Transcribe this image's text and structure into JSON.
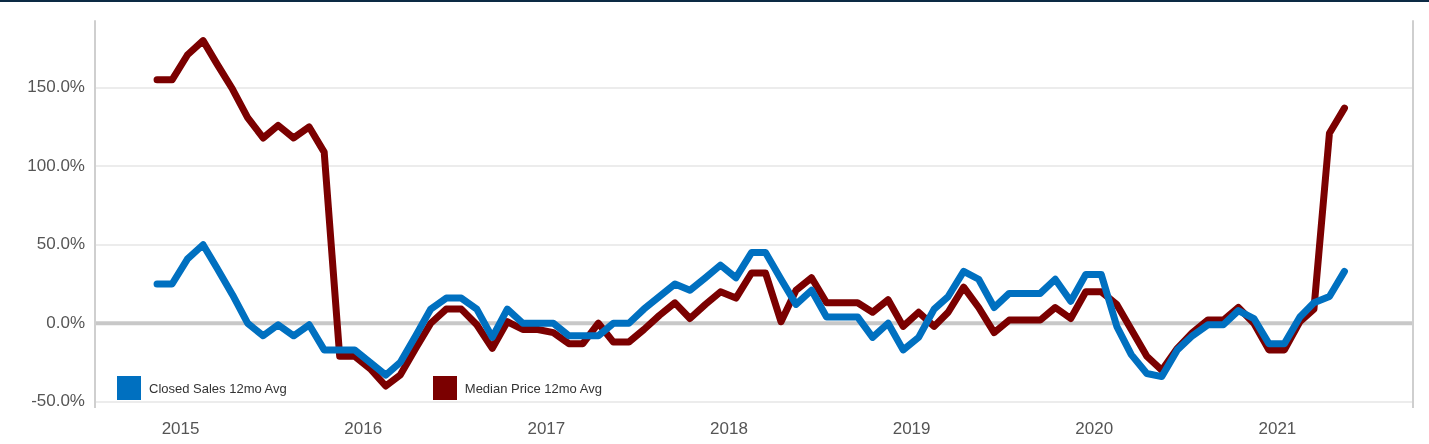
{
  "chart_data": {
    "type": "line",
    "x": [
      "2014-11-15",
      "2014-12-15",
      "2015-01-15",
      "2015-02-15",
      "2015-03-15",
      "2015-04-15",
      "2015-05-15",
      "2015-06-15",
      "2015-07-15",
      "2015-08-15",
      "2015-09-15",
      "2015-10-15",
      "2015-11-15",
      "2015-12-15",
      "2016-01-15",
      "2016-02-15",
      "2016-03-15",
      "2016-04-15",
      "2016-05-15",
      "2016-06-15",
      "2016-07-15",
      "2016-08-15",
      "2016-09-15",
      "2016-10-15",
      "2016-11-15",
      "2016-12-15",
      "2017-01-15",
      "2017-02-15",
      "2017-03-15",
      "2017-04-15",
      "2017-05-15",
      "2017-06-15",
      "2017-07-15",
      "2017-08-15",
      "2017-09-15",
      "2017-10-15",
      "2017-11-15",
      "2017-12-15",
      "2018-01-15",
      "2018-02-15",
      "2018-03-15",
      "2018-04-15",
      "2018-05-15",
      "2018-06-15",
      "2018-07-15",
      "2018-08-15",
      "2018-09-15",
      "2018-10-15",
      "2018-11-15",
      "2018-12-15",
      "2019-01-15",
      "2019-02-15",
      "2019-03-15",
      "2019-04-15",
      "2019-05-15",
      "2019-06-15",
      "2019-07-15",
      "2019-08-15",
      "2019-09-15",
      "2019-10-15",
      "2019-11-15",
      "2019-12-15",
      "2020-01-15",
      "2020-02-15",
      "2020-03-15",
      "2020-04-15",
      "2020-05-15",
      "2020-06-15",
      "2020-07-15",
      "2020-08-15",
      "2020-09-15",
      "2020-10-15",
      "2020-11-15",
      "2020-12-15",
      "2021-01-15",
      "2021-02-15",
      "2021-03-15",
      "2021-04-15",
      "2021-05-15"
    ],
    "series": [
      {
        "name": "Closed Sales 12mo Avg",
        "color": "#0070c0",
        "values": [
          25,
          25,
          41,
          50,
          35,
          18,
          0,
          -8,
          -1,
          -8,
          -1,
          -17,
          -17,
          -17,
          -25,
          -33,
          -25,
          -8,
          9,
          16,
          16,
          9,
          -9,
          9,
          0,
          0,
          0,
          -8,
          -8,
          -8,
          0,
          0,
          9,
          17,
          25,
          21,
          29,
          37,
          29,
          45,
          45,
          28,
          12,
          21,
          4,
          4,
          4,
          -9,
          0,
          -17,
          -9,
          9,
          17,
          33,
          28,
          10,
          19,
          19,
          19,
          28,
          14,
          31,
          31,
          -2,
          -20,
          -32,
          -34,
          -17,
          -8,
          -1,
          -1,
          8,
          3,
          -13,
          -13,
          4,
          13,
          17,
          33
        ]
      },
      {
        "name": "Median Price 12mo Avg",
        "color": "#7b0000",
        "values": [
          155,
          155,
          171,
          180,
          165,
          149,
          131,
          118,
          126,
          118,
          125,
          109,
          -21,
          -21,
          -29,
          -40,
          -33,
          -16,
          0,
          9,
          9,
          -1,
          -16,
          1,
          -4,
          -4,
          -6,
          -13,
          -13,
          0,
          -12,
          -12,
          -4,
          5,
          13,
          3,
          12,
          20,
          16,
          32,
          32,
          1,
          21,
          29,
          13,
          13,
          13,
          7,
          15,
          -2,
          7,
          -2,
          7,
          23,
          10,
          -6,
          2,
          2,
          2,
          10,
          3,
          20,
          20,
          12,
          -4,
          -21,
          -30,
          -16,
          -6,
          2,
          2,
          10,
          0,
          -17,
          -17,
          1,
          9,
          121,
          137
        ]
      }
    ],
    "xlim": [
      "2014-07-14",
      "2021-09-29"
    ],
    "xticks": [
      "2015",
      "2016",
      "2017",
      "2018",
      "2019",
      "2020",
      "2021"
    ],
    "ylim": [
      -54,
      193
    ],
    "yticks": [
      {
        "value": -50,
        "label": "-50.0%"
      },
      {
        "value": 0,
        "label": "0.0%"
      },
      {
        "value": 50,
        "label": "50.0%"
      },
      {
        "value": 100,
        "label": "100.0%"
      },
      {
        "value": 150,
        "label": "150.0%"
      }
    ],
    "ref_lines": [
      {
        "axis": "y",
        "value": 0,
        "color": "#c8c8c8"
      }
    ],
    "grid": "y",
    "legend": "bottom left",
    "marker": "none",
    "line_style": "solid"
  }
}
